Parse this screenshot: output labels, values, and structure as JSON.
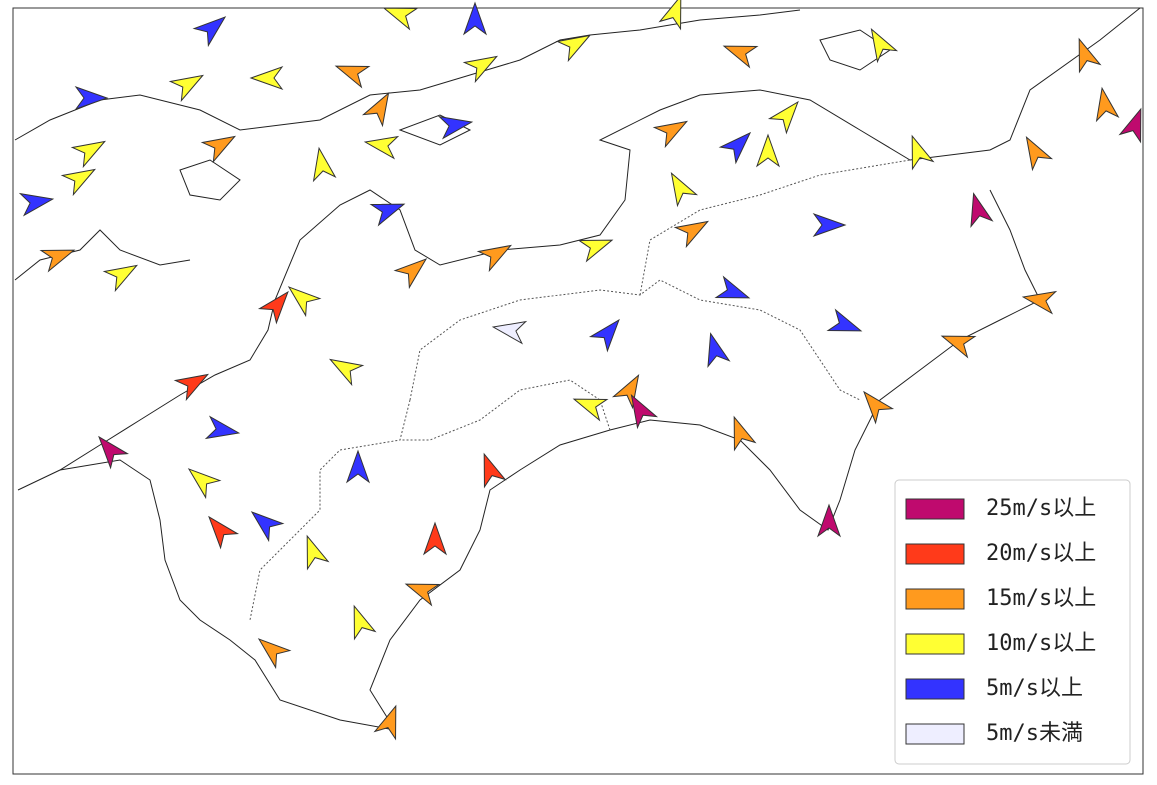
{
  "legend": {
    "items": [
      {
        "label": "25m/s以上",
        "color": "#bf0a6e"
      },
      {
        "label": "20m/s以上",
        "color": "#ff3a1a"
      },
      {
        "label": "15m/s以上",
        "color": "#ff9a1e"
      },
      {
        "label": "10m/s以上",
        "color": "#ffff33"
      },
      {
        "label": "5m/s以上",
        "color": "#3333ff"
      },
      {
        "label": "5m/s未満",
        "color": "#eeeeff"
      }
    ]
  }
}
